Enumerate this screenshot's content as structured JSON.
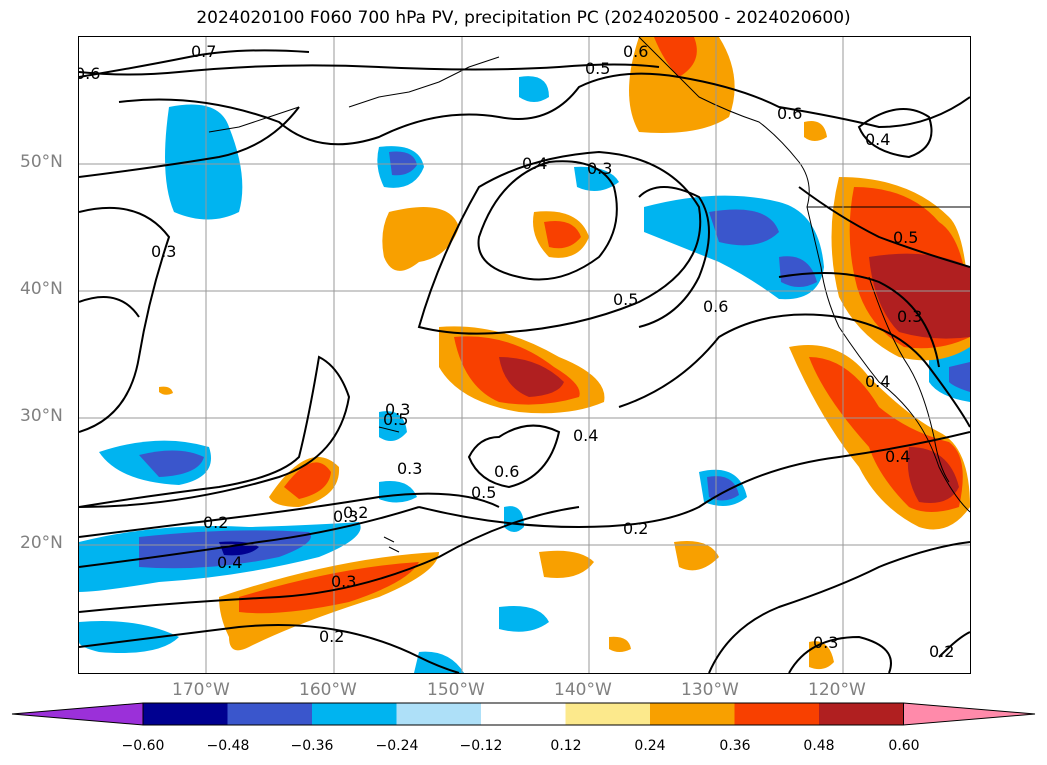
{
  "title": "2024020100 F060 700 hPa PV, precipitation PC (2024020500 - 2024020600)",
  "lat_labels": [
    "50°N",
    "40°N",
    "30°N",
    "20°N"
  ],
  "lon_labels": [
    "170°W",
    "160°W",
    "150°W",
    "140°W",
    "130°W",
    "120°W"
  ],
  "colorbar": {
    "ticks": [
      "−0.60",
      "−0.48",
      "−0.36",
      "−0.24",
      "−0.12",
      "0.12",
      "0.24",
      "0.36",
      "0.48",
      "0.60"
    ],
    "colors": [
      "#9b30d9",
      "#000090",
      "#3a56cc",
      "#00b4f0",
      "#aee0f8",
      "#ffffff",
      "#fce98c",
      "#f8a000",
      "#f84000",
      "#b01f20",
      "#ff8aaa"
    ]
  },
  "contour_labels": [
    "0.7",
    "0.6",
    "0.5",
    "0.6",
    "0.6",
    "0.4",
    "0.4",
    "0.3",
    "0.3",
    "0.5",
    "0.6",
    "0.5",
    "0.3",
    "0.5",
    "0.3",
    "0.4",
    "0.4",
    "0.4",
    "0.6",
    "0.5",
    "0.3",
    "0.2",
    "0.2",
    "0.4",
    "0.3",
    "0.2",
    "0.2",
    "0.3",
    "0.2",
    "0.3"
  ]
}
